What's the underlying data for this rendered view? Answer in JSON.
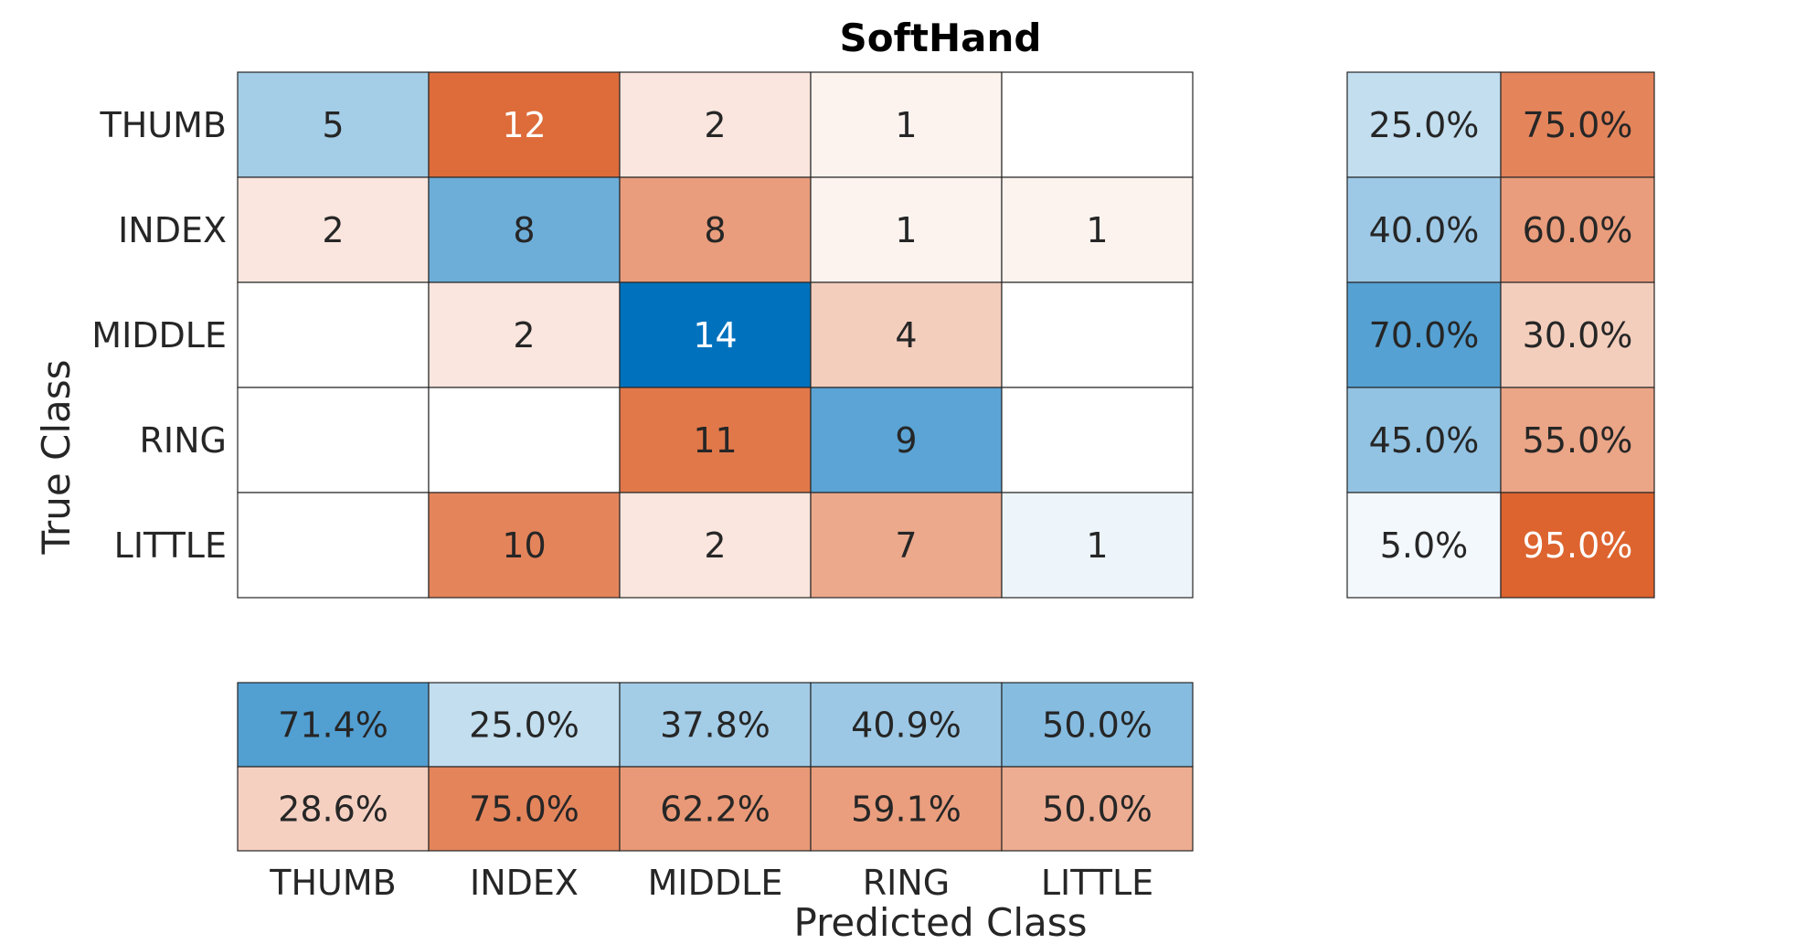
{
  "chart_data": {
    "type": "heatmap",
    "title": "SoftHand",
    "xlabel": "Predicted Class",
    "ylabel": "True Class",
    "classes": [
      "THUMB",
      "INDEX",
      "MIDDLE",
      "RING",
      "LITTLE"
    ],
    "matrix": [
      [
        5,
        12,
        2,
        1,
        0
      ],
      [
        2,
        8,
        8,
        1,
        1
      ],
      [
        0,
        2,
        14,
        4,
        0
      ],
      [
        0,
        0,
        11,
        9,
        0
      ],
      [
        0,
        10,
        2,
        7,
        1
      ]
    ],
    "row_summary": {
      "correct": [
        "25.0%",
        "40.0%",
        "70.0%",
        "45.0%",
        "5.0%"
      ],
      "incorrect": [
        "75.0%",
        "60.0%",
        "30.0%",
        "55.0%",
        "95.0%"
      ]
    },
    "column_summary": {
      "correct": [
        "71.4%",
        "25.0%",
        "37.8%",
        "40.9%",
        "50.0%"
      ],
      "incorrect": [
        "28.6%",
        "75.0%",
        "62.2%",
        "59.1%",
        "50.0%"
      ]
    },
    "colors": {
      "correct": "#0072bd",
      "incorrect": "#d95319",
      "background": "#ffffff",
      "cell_border": "#262626",
      "text_dark": "#262626",
      "text_light": "#ffffff"
    }
  }
}
